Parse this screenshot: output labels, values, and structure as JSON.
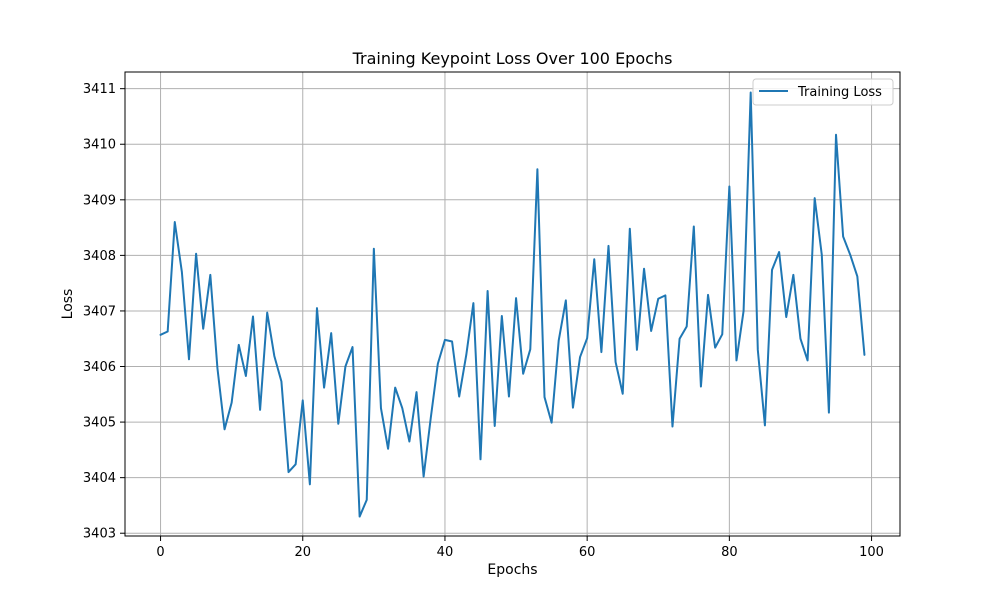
{
  "chart_data": {
    "type": "line",
    "title": "Training Keypoint Loss Over 100 Epochs",
    "xlabel": "Epochs",
    "ylabel": "Loss",
    "xlim": [
      -5,
      104
    ],
    "ylim": [
      3402.95,
      3411.3
    ],
    "xticks": [
      0,
      20,
      40,
      60,
      80,
      100
    ],
    "yticks": [
      3403,
      3404,
      3405,
      3406,
      3407,
      3408,
      3409,
      3410,
      3411
    ],
    "grid": true,
    "legend_position": "upper-right",
    "color": "#1f77b4",
    "series": [
      {
        "name": "Training Loss",
        "x": [
          0,
          1,
          2,
          3,
          4,
          5,
          6,
          7,
          8,
          9,
          10,
          11,
          12,
          13,
          14,
          15,
          16,
          17,
          18,
          19,
          20,
          21,
          22,
          23,
          24,
          25,
          26,
          27,
          28,
          29,
          30,
          31,
          32,
          33,
          34,
          35,
          36,
          37,
          38,
          39,
          40,
          41,
          42,
          43,
          44,
          45,
          46,
          47,
          48,
          49,
          50,
          51,
          52,
          53,
          54,
          55,
          56,
          57,
          58,
          59,
          60,
          61,
          62,
          63,
          64,
          65,
          66,
          67,
          68,
          69,
          70,
          71,
          72,
          73,
          74,
          75,
          76,
          77,
          78,
          79,
          80,
          81,
          82,
          83,
          84,
          85,
          86,
          87,
          88,
          89,
          90,
          91,
          92,
          93,
          94,
          95,
          96,
          97,
          98,
          99
        ],
        "values": [
          3406.57,
          3406.63,
          3408.6,
          3407.7,
          3406.13,
          3408.03,
          3406.68,
          3407.65,
          3405.97,
          3404.87,
          3405.35,
          3406.39,
          3405.83,
          3406.9,
          3405.22,
          3406.97,
          3406.19,
          3405.73,
          3404.1,
          3404.24,
          3405.39,
          3403.88,
          3407.05,
          3405.62,
          3406.6,
          3404.97,
          3406.0,
          3406.35,
          3403.3,
          3403.6,
          3408.12,
          3405.25,
          3404.52,
          3405.62,
          3405.25,
          3404.65,
          3405.54,
          3404.02,
          3405.07,
          3406.05,
          3406.48,
          3406.45,
          3405.46,
          3406.21,
          3407.14,
          3404.33,
          3407.36,
          3404.93,
          3406.91,
          3405.46,
          3407.23,
          3405.87,
          3406.31,
          3409.55,
          3405.45,
          3404.99,
          3406.47,
          3407.19,
          3405.26,
          3406.17,
          3406.51,
          3407.93,
          3406.26,
          3408.17,
          3406.08,
          3405.51,
          3408.48,
          3406.3,
          3407.76,
          3406.64,
          3407.22,
          3407.28,
          3404.92,
          3406.5,
          3406.72,
          3408.52,
          3405.64,
          3407.29,
          3406.34,
          3406.58,
          3409.24,
          3406.11,
          3407.0,
          3410.93,
          3406.3,
          3404.94,
          3407.74,
          3408.06,
          3406.89,
          3407.65,
          3406.5,
          3406.11,
          3409.03,
          3408.01,
          3405.17,
          3410.17,
          3408.34,
          3408.01,
          3407.62,
          3406.21
        ]
      }
    ]
  }
}
